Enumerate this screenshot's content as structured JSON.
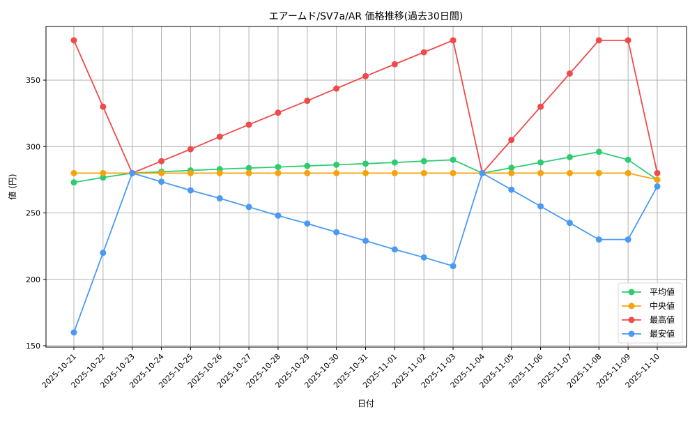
{
  "chart_data": {
    "type": "line",
    "title": "エアームド/SV7a/AR 価格推移(過去30日間)",
    "xlabel": "日付",
    "ylabel": "値 (円)",
    "ylim": [
      147,
      390
    ],
    "yticks": [
      150,
      200,
      250,
      300,
      350
    ],
    "grid": true,
    "legend_position": "lower right",
    "x": [
      "2025-10-21",
      "2025-10-22",
      "2025-10-23",
      "2025-10-24",
      "2025-10-25",
      "2025-10-26",
      "2025-10-27",
      "2025-10-28",
      "2025-10-29",
      "2025-10-30",
      "2025-10-31",
      "2025-11-01",
      "2025-11-02",
      "2025-11-03",
      "2025-11-04",
      "2025-11-05",
      "2025-11-06",
      "2025-11-07",
      "2025-11-08",
      "2025-11-09",
      "2025-11-10"
    ],
    "series": [
      {
        "name": "平均値",
        "color": "#2ecc71",
        "values": [
          273,
          276.7,
          280,
          281,
          282,
          283,
          283.8,
          284.6,
          285.4,
          286.3,
          287.1,
          288,
          289,
          290,
          280,
          284,
          288,
          292,
          296,
          290,
          275
        ]
      },
      {
        "name": "中央値",
        "color": "#f5a30a",
        "values": [
          280,
          280,
          280,
          280,
          280,
          280,
          280,
          280,
          280,
          280,
          280,
          280,
          280,
          280,
          280,
          280,
          280,
          280,
          280,
          280,
          275
        ]
      },
      {
        "name": "最高値",
        "color": "#f04a4a",
        "values": [
          380,
          330,
          280,
          289,
          298,
          307.4,
          316.5,
          325.5,
          334.5,
          343.7,
          353,
          362,
          371,
          380,
          280,
          305,
          330,
          355,
          380,
          380,
          280
        ]
      },
      {
        "name": "最安値",
        "color": "#4a9af5",
        "values": [
          160,
          220,
          280,
          273.5,
          267,
          261,
          254.5,
          248,
          242,
          235.5,
          229,
          222.5,
          216.5,
          210,
          280,
          267.5,
          255,
          242.5,
          230,
          230,
          270
        ]
      }
    ]
  }
}
